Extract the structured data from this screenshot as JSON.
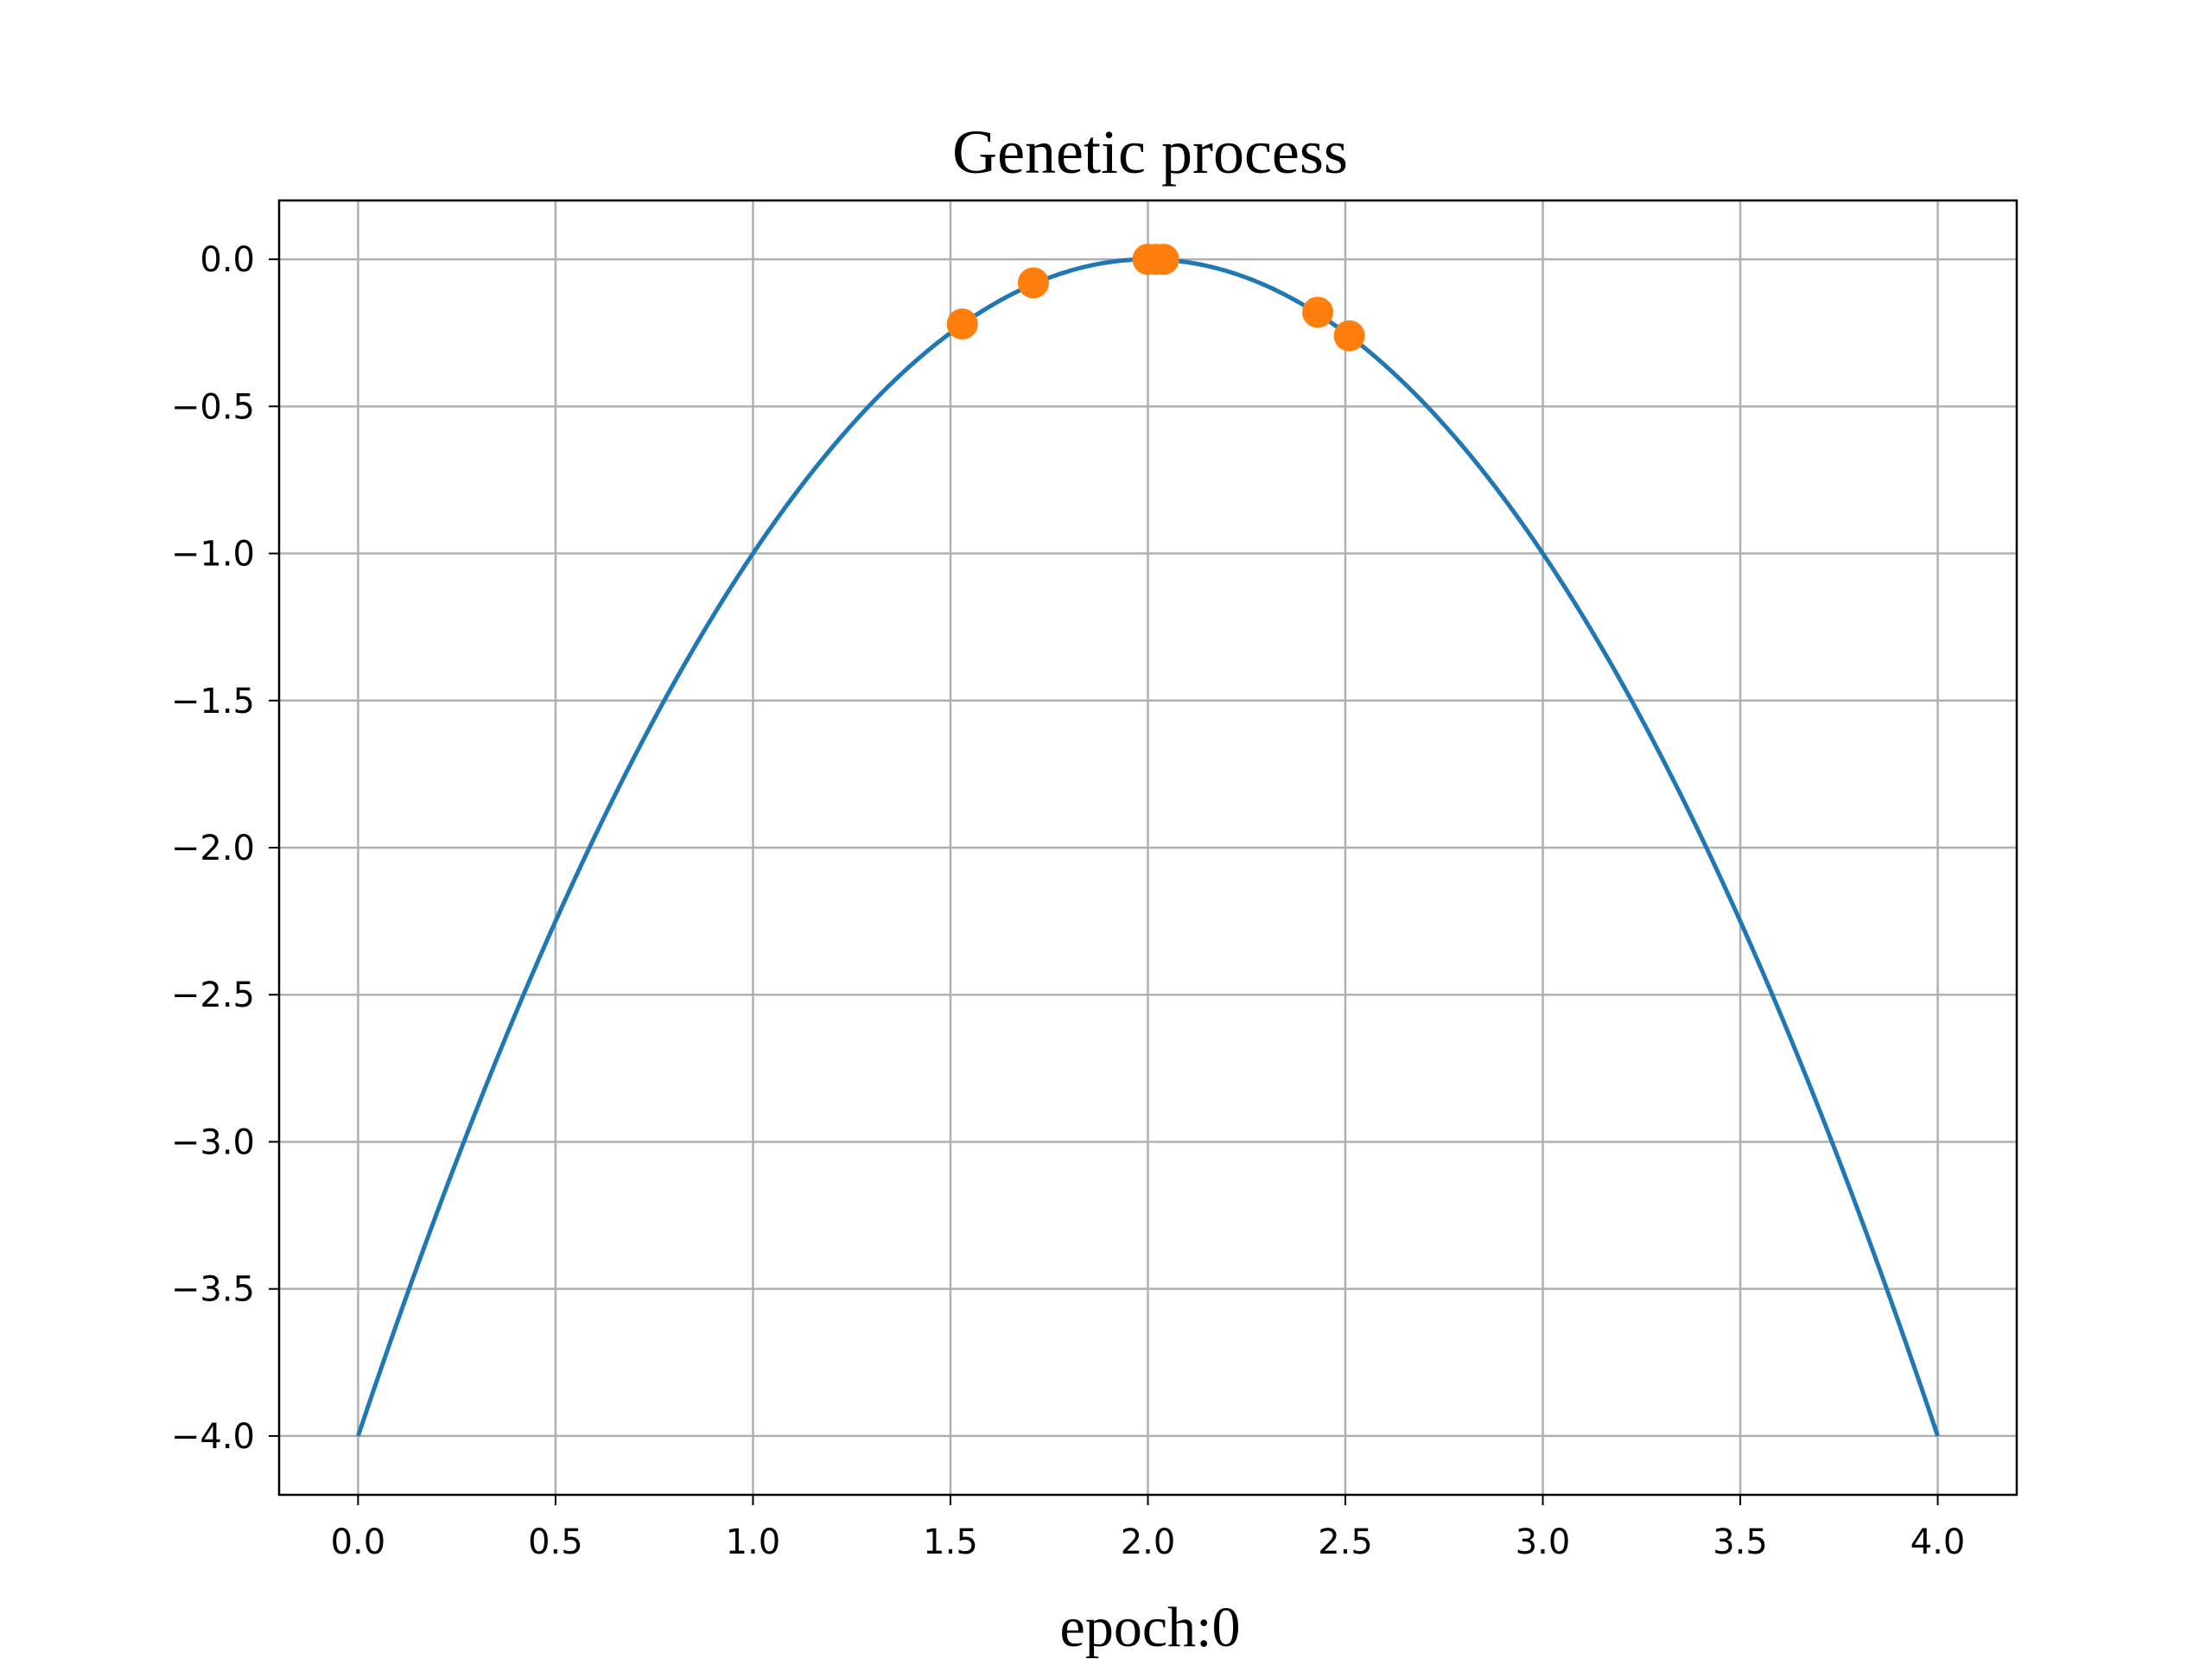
{
  "chart_data": {
    "type": "line",
    "title": "Genetic process",
    "xlabel": "epoch:0",
    "ylabel": "",
    "xlim": [
      -0.2,
      4.2
    ],
    "ylim": [
      -4.2,
      0.2
    ],
    "grid": true,
    "x_ticks": [
      "0.0",
      "0.5",
      "1.0",
      "1.5",
      "2.0",
      "2.5",
      "3.0",
      "3.5",
      "4.0"
    ],
    "y_ticks": [
      "0.0",
      "−0.5",
      "−1.0",
      "−1.5",
      "−2.0",
      "−2.5",
      "−3.0",
      "−3.5",
      "−4.0"
    ],
    "colors": {
      "curve": "#1f77b4",
      "points": "#ff7f0e",
      "grid": "#b0b0b0",
      "frame": "#000000"
    },
    "series": [
      {
        "type": "line",
        "function": "y = -(x - 2)^2",
        "x_range": [
          0,
          4
        ],
        "color": "#1f77b4"
      },
      {
        "type": "scatter",
        "color": "#ff7f0e",
        "points": [
          {
            "x": 1.53,
            "y": -0.22
          },
          {
            "x": 1.71,
            "y": -0.08
          },
          {
            "x": 2.0,
            "y": 0.0
          },
          {
            "x": 2.02,
            "y": 0.0
          },
          {
            "x": 2.04,
            "y": 0.0
          },
          {
            "x": 2.43,
            "y": -0.18
          },
          {
            "x": 2.51,
            "y": -0.26
          }
        ]
      }
    ]
  }
}
